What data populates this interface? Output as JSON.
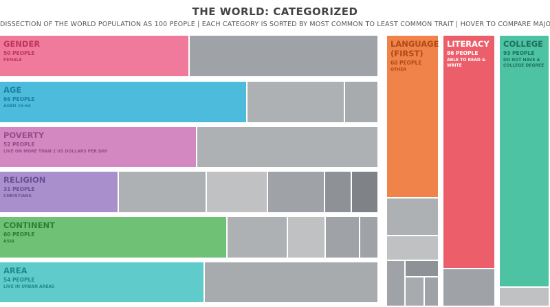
{
  "title": "THE WORLD: CATEGORIZED",
  "subtitle": "DISSECTION OF THE WORLD POPULATION AS 100 PEOPLE | EACH CATEGORY IS SORTED BY MOST COMMON TO LEAST COMMON TRAIT | HOVER TO COMPARE MAJORITIES",
  "chart_data": {
    "type": "treemap",
    "total_people": 100,
    "categories": [
      {
        "name": "GENDER",
        "count_label": "50 PEOPLE",
        "trait": "FEMALE",
        "majority": 50,
        "others": [
          50
        ],
        "color": "#ef7a9b",
        "text_color": "#c0345a"
      },
      {
        "name": "AGE",
        "count_label": "66 PEOPLE",
        "trait": "AGED 15-64",
        "majority": 66,
        "others": [
          26,
          9
        ],
        "color": "#4dbbdc",
        "text_color": "#1d7fa0"
      },
      {
        "name": "POVERTY",
        "count_label": "52 PEOPLE",
        "trait": "LIVE ON MORE THAN 2 US DOLLARS PER DAY",
        "majority": 52,
        "others": [
          48
        ],
        "color": "#d488c1",
        "text_color": "#9a4a88"
      },
      {
        "name": "RELIGION",
        "count_label": "31 PEOPLE",
        "trait": "CHRISTIANS",
        "majority": 31,
        "others": [
          23,
          16,
          15,
          7,
          7
        ],
        "color": "#a990cd",
        "text_color": "#6a4f95"
      },
      {
        "name": "CONTINENT",
        "count_label": "60 PEOPLE",
        "trait": "ASIA",
        "majority": 60,
        "others": [
          16,
          10,
          9,
          5
        ],
        "color": "#6fc176",
        "text_color": "#2f7e36"
      },
      {
        "name": "AREA",
        "count_label": "54 PEOPLE",
        "trait": "LIVE IN URBAN AREAS",
        "majority": 54,
        "others": [
          46
        ],
        "color": "#5fcbcb",
        "text_color": "#1e8b8b"
      },
      {
        "name": "LANGUAGE\n(FIRST)",
        "count_label": "60 PEOPLE",
        "trait": "OTHER",
        "majority": 60,
        "others": [
          14,
          9,
          6,
          4,
          4,
          3
        ],
        "color": "#f0834a",
        "text_color": "#b04a14"
      },
      {
        "name": "LITERACY",
        "count_label": "86 PEOPLE",
        "trait": "ABLE TO READ & WRITE",
        "majority": 86,
        "others": [
          14
        ],
        "color": "#ec5f6a",
        "text_color": "#ffffff"
      },
      {
        "name": "COLLEGE",
        "count_label": "93 PEOPLE",
        "trait": "DO NOT HAVE A COLLEGE DEGREE",
        "majority": 93,
        "others": [
          7
        ],
        "color": "#4ec3a4",
        "text_color": "#1d6f5c"
      }
    ],
    "other_colors": [
      "#aeb1b4",
      "#bfc1c3",
      "#9fa3a7",
      "#8e9296",
      "#a8abae",
      "#7f8387"
    ]
  }
}
